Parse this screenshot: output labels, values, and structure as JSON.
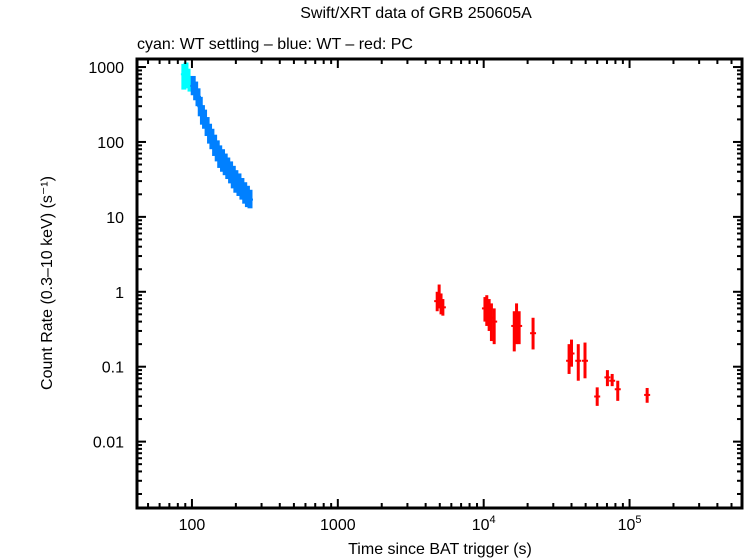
{
  "chart_data": {
    "type": "scatter",
    "title": "Swift/XRT data of GRB 250605A",
    "subtitle": "cyan: WT settling – blue: WT – red: PC",
    "xlabel": "Time since BAT trigger (s)",
    "ylabel": "Count Rate (0.3–10 keV) (s⁻¹)",
    "xscale": "log",
    "yscale": "log",
    "xlim": [
      42,
      590000
    ],
    "ylim": [
      0.0013,
      1280
    ],
    "grid": false,
    "legend": "none",
    "x_ticks": [
      {
        "value": 100,
        "label": "100"
      },
      {
        "value": 1000,
        "label": "1000"
      },
      {
        "value": 10000,
        "label": "10",
        "sup": "4"
      },
      {
        "value": 100000,
        "label": "10",
        "sup": "5"
      }
    ],
    "y_ticks": [
      {
        "value": 1000,
        "label": "1000"
      },
      {
        "value": 100,
        "label": "100"
      },
      {
        "value": 10,
        "label": "10"
      },
      {
        "value": 1,
        "label": "1"
      },
      {
        "value": 0.1,
        "label": "0.1"
      },
      {
        "value": 0.01,
        "label": "0.01"
      }
    ],
    "series": [
      {
        "name": "WT settling",
        "color": "#00ffff",
        "points": [
          {
            "t": 88,
            "rate": 800,
            "lo": 500,
            "hi": 1100
          },
          {
            "t": 91,
            "rate": 900,
            "lo": 650,
            "hi": 1150
          },
          {
            "t": 94,
            "rate": 700,
            "lo": 520,
            "hi": 950
          },
          {
            "t": 97,
            "rate": 600,
            "lo": 470,
            "hi": 760
          }
        ]
      },
      {
        "name": "WT",
        "color": "#0080ff",
        "points": [
          {
            "t": 102,
            "rate": 560,
            "lo": 420,
            "hi": 760
          },
          {
            "t": 106,
            "rate": 480,
            "lo": 360,
            "hi": 640
          },
          {
            "t": 110,
            "rate": 400,
            "lo": 300,
            "hi": 520
          },
          {
            "t": 114,
            "rate": 300,
            "lo": 220,
            "hi": 400
          },
          {
            "t": 118,
            "rate": 230,
            "lo": 170,
            "hi": 310
          },
          {
            "t": 122,
            "rate": 200,
            "lo": 150,
            "hi": 270
          },
          {
            "t": 127,
            "rate": 160,
            "lo": 120,
            "hi": 215
          },
          {
            "t": 132,
            "rate": 130,
            "lo": 95,
            "hi": 175
          },
          {
            "t": 137,
            "rate": 110,
            "lo": 80,
            "hi": 150
          },
          {
            "t": 143,
            "rate": 90,
            "lo": 65,
            "hi": 125
          },
          {
            "t": 149,
            "rate": 75,
            "lo": 55,
            "hi": 105
          },
          {
            "t": 155,
            "rate": 65,
            "lo": 45,
            "hi": 90
          },
          {
            "t": 162,
            "rate": 58,
            "lo": 40,
            "hi": 80
          },
          {
            "t": 169,
            "rate": 50,
            "lo": 36,
            "hi": 70
          },
          {
            "t": 176,
            "rate": 45,
            "lo": 32,
            "hi": 62
          },
          {
            "t": 184,
            "rate": 40,
            "lo": 28,
            "hi": 55
          },
          {
            "t": 192,
            "rate": 34,
            "lo": 24,
            "hi": 48
          },
          {
            "t": 200,
            "rate": 30,
            "lo": 21,
            "hi": 42
          },
          {
            "t": 210,
            "rate": 27,
            "lo": 19,
            "hi": 38
          },
          {
            "t": 220,
            "rate": 24,
            "lo": 17,
            "hi": 33
          },
          {
            "t": 230,
            "rate": 21,
            "lo": 15,
            "hi": 29
          },
          {
            "t": 240,
            "rate": 19,
            "lo": 13.5,
            "hi": 26
          },
          {
            "t": 250,
            "rate": 17,
            "lo": 13,
            "hi": 23
          }
        ]
      },
      {
        "name": "PC",
        "color": "#ff0000",
        "points": [
          {
            "t": 4800,
            "rate": 0.75,
            "lo": 0.55,
            "hi": 1.0
          },
          {
            "t": 4950,
            "rate": 0.85,
            "lo": 0.6,
            "hi": 1.25
          },
          {
            "t": 5100,
            "rate": 0.7,
            "lo": 0.5,
            "hi": 0.95
          },
          {
            "t": 5250,
            "rate": 0.62,
            "lo": 0.48,
            "hi": 0.8
          },
          {
            "t": 10200,
            "rate": 0.6,
            "lo": 0.4,
            "hi": 0.85
          },
          {
            "t": 10500,
            "rate": 0.55,
            "lo": 0.35,
            "hi": 0.9
          },
          {
            "t": 10900,
            "rate": 0.5,
            "lo": 0.3,
            "hi": 0.8
          },
          {
            "t": 11300,
            "rate": 0.45,
            "lo": 0.22,
            "hi": 0.7
          },
          {
            "t": 11800,
            "rate": 0.4,
            "lo": 0.2,
            "hi": 0.6
          },
          {
            "t": 16200,
            "rate": 0.35,
            "lo": 0.16,
            "hi": 0.55
          },
          {
            "t": 16800,
            "rate": 0.4,
            "lo": 0.2,
            "hi": 0.7
          },
          {
            "t": 17500,
            "rate": 0.35,
            "lo": 0.2,
            "hi": 0.55
          },
          {
            "t": 21800,
            "rate": 0.28,
            "lo": 0.17,
            "hi": 0.45
          },
          {
            "t": 38500,
            "rate": 0.12,
            "lo": 0.08,
            "hi": 0.2
          },
          {
            "t": 40000,
            "rate": 0.15,
            "lo": 0.1,
            "hi": 0.23
          },
          {
            "t": 44500,
            "rate": 0.12,
            "lo": 0.065,
            "hi": 0.2
          },
          {
            "t": 49500,
            "rate": 0.12,
            "lo": 0.07,
            "hi": 0.21
          },
          {
            "t": 60000,
            "rate": 0.04,
            "lo": 0.03,
            "hi": 0.053
          },
          {
            "t": 70500,
            "rate": 0.072,
            "lo": 0.055,
            "hi": 0.09
          },
          {
            "t": 76000,
            "rate": 0.065,
            "lo": 0.055,
            "hi": 0.08
          },
          {
            "t": 83000,
            "rate": 0.05,
            "lo": 0.035,
            "hi": 0.065
          },
          {
            "t": 132000,
            "rate": 0.042,
            "lo": 0.033,
            "hi": 0.052
          }
        ]
      }
    ]
  }
}
